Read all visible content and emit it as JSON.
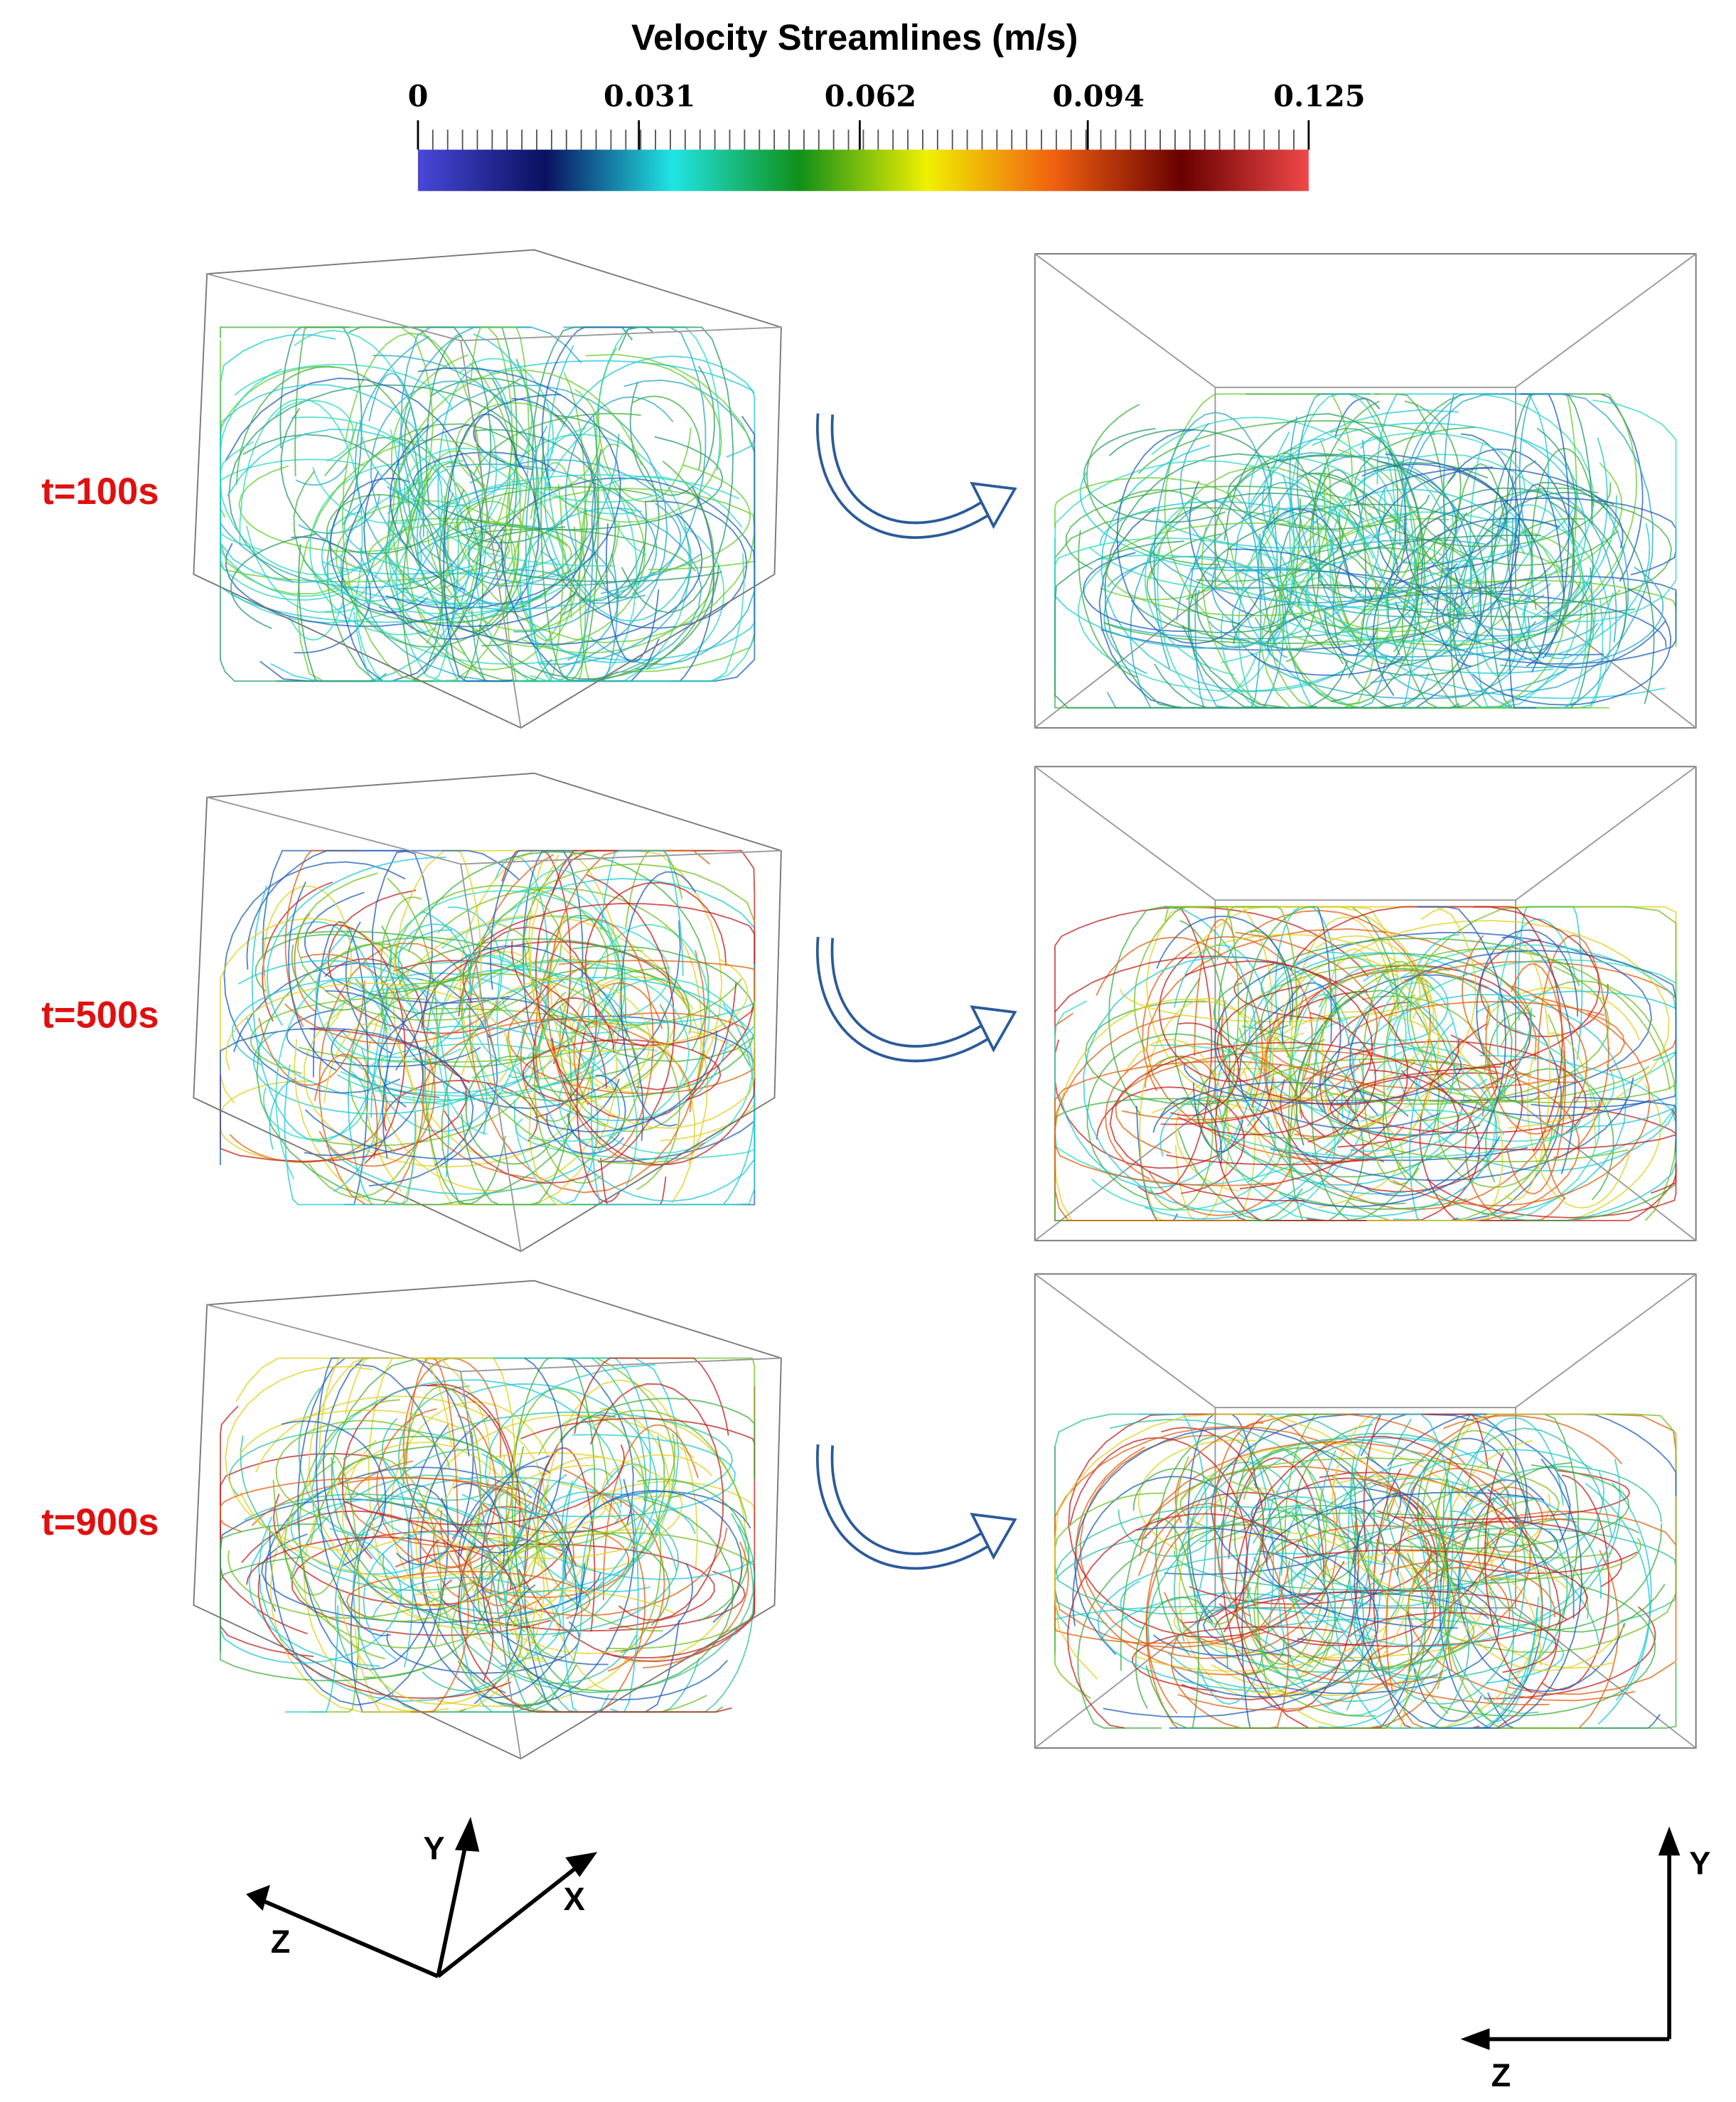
{
  "colorbar": {
    "title": "Velocity Streamlines (m/s)",
    "range": [
      0,
      0.125
    ],
    "ticks": [
      0,
      0.031,
      0.062,
      0.094,
      0.125
    ],
    "colors": [
      "#4848d8",
      "#0a1060",
      "#20e4e4",
      "#109018",
      "#f0f000",
      "#f06010",
      "#6a0000",
      "#f04848"
    ]
  },
  "rows": [
    {
      "label": "t=100s"
    },
    {
      "label": "t=500s"
    },
    {
      "label": "t=900s"
    }
  ],
  "triad_3d": {
    "y": "Y",
    "x": "X",
    "z": "Z"
  },
  "triad_2d": {
    "y": "Y",
    "z": "Z"
  }
}
